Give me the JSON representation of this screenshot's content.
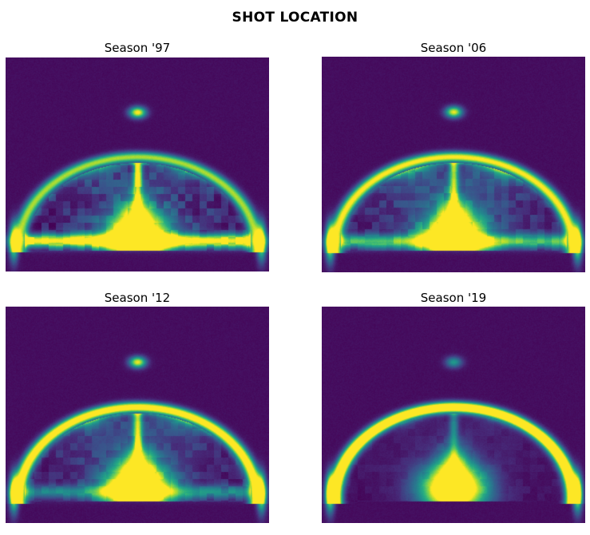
{
  "figure": {
    "title": "SHOT LOCATION"
  },
  "chart_data": [
    {
      "type": "heatmap",
      "title": "Season '97",
      "colormap": "viridis",
      "axes": "off",
      "features": {
        "arc": 0.85,
        "top_blob": 1.0,
        "center_lane": 0.8,
        "paint": 1.0,
        "baseline_band": 1.0,
        "corners": 0.9,
        "midrange": 0.55,
        "grid_noise": 0.22
      }
    },
    {
      "type": "heatmap",
      "title": "Season '06",
      "colormap": "viridis",
      "axes": "off",
      "features": {
        "arc": 1.0,
        "top_blob": 0.95,
        "center_lane": 0.7,
        "paint": 1.0,
        "baseline_band": 0.65,
        "corners": 1.0,
        "midrange": 0.75,
        "grid_noise": 0.16
      }
    },
    {
      "type": "heatmap",
      "title": "Season '12",
      "colormap": "viridis",
      "axes": "off",
      "features": {
        "arc": 1.15,
        "top_blob": 0.95,
        "center_lane": 0.75,
        "paint": 1.1,
        "baseline_band": 0.4,
        "corners": 1.0,
        "midrange": 0.6,
        "grid_noise": 0.14
      }
    },
    {
      "type": "heatmap",
      "title": "Season '19",
      "colormap": "viridis",
      "axes": "off",
      "features": {
        "arc": 1.45,
        "top_blob": 0.5,
        "center_lane": 0.35,
        "paint": 1.0,
        "baseline_band": 0.0,
        "corners": 1.0,
        "midrange": 0.18,
        "grid_noise": 0.06
      }
    }
  ]
}
